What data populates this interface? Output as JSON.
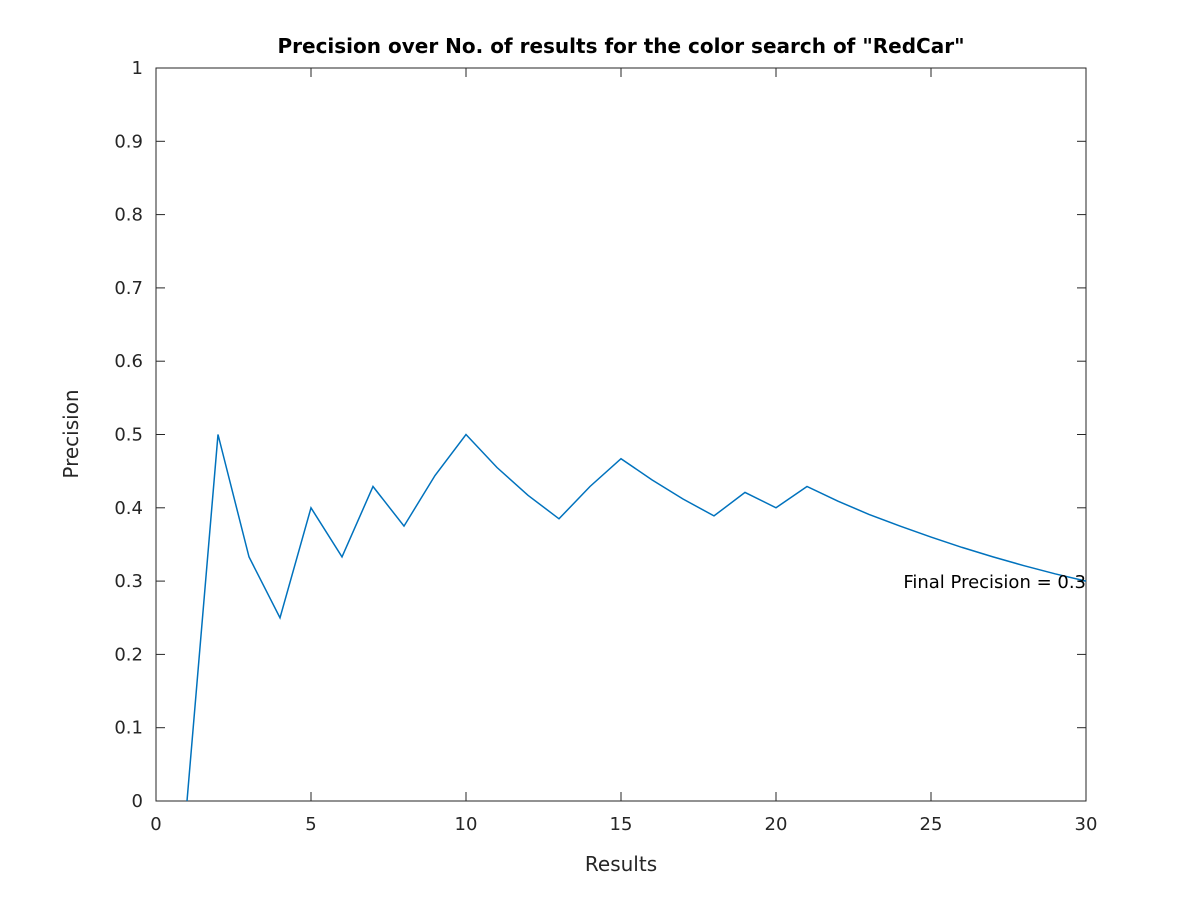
{
  "chart_data": {
    "type": "line",
    "title": "Precision over No. of results for the color search of \"RedCar\"",
    "xlabel": "Results",
    "ylabel": "Precision",
    "xlim": [
      0,
      30
    ],
    "ylim": [
      0,
      1
    ],
    "x_ticks": [
      "0",
      "5",
      "10",
      "15",
      "20",
      "25",
      "30"
    ],
    "y_ticks": [
      "0",
      "0.1",
      "0.2",
      "0.3",
      "0.4",
      "0.5",
      "0.6",
      "0.7",
      "0.8",
      "0.9",
      "1"
    ],
    "grid": false,
    "legend": "none",
    "series_color": "#0072bd",
    "series": [
      {
        "x": [
          1,
          2,
          3,
          4,
          5,
          6,
          7,
          8,
          9,
          10,
          11,
          12,
          13,
          14,
          15,
          16,
          17,
          18,
          19,
          20,
          21,
          22,
          23,
          24,
          25,
          26,
          27,
          28,
          29,
          30
        ],
        "values": [
          0,
          0.5,
          0.333,
          0.25,
          0.4,
          0.333,
          0.429,
          0.375,
          0.444,
          0.5,
          0.455,
          0.417,
          0.385,
          0.429,
          0.467,
          0.438,
          0.412,
          0.389,
          0.421,
          0.4,
          0.429,
          0.409,
          0.391,
          0.375,
          0.36,
          0.346,
          0.333,
          0.321,
          0.31,
          0.3
        ]
      }
    ],
    "annotations": [
      {
        "text": "Final Precision = 0.3",
        "x": 30,
        "y": 0.3,
        "anchor": "end"
      }
    ]
  }
}
